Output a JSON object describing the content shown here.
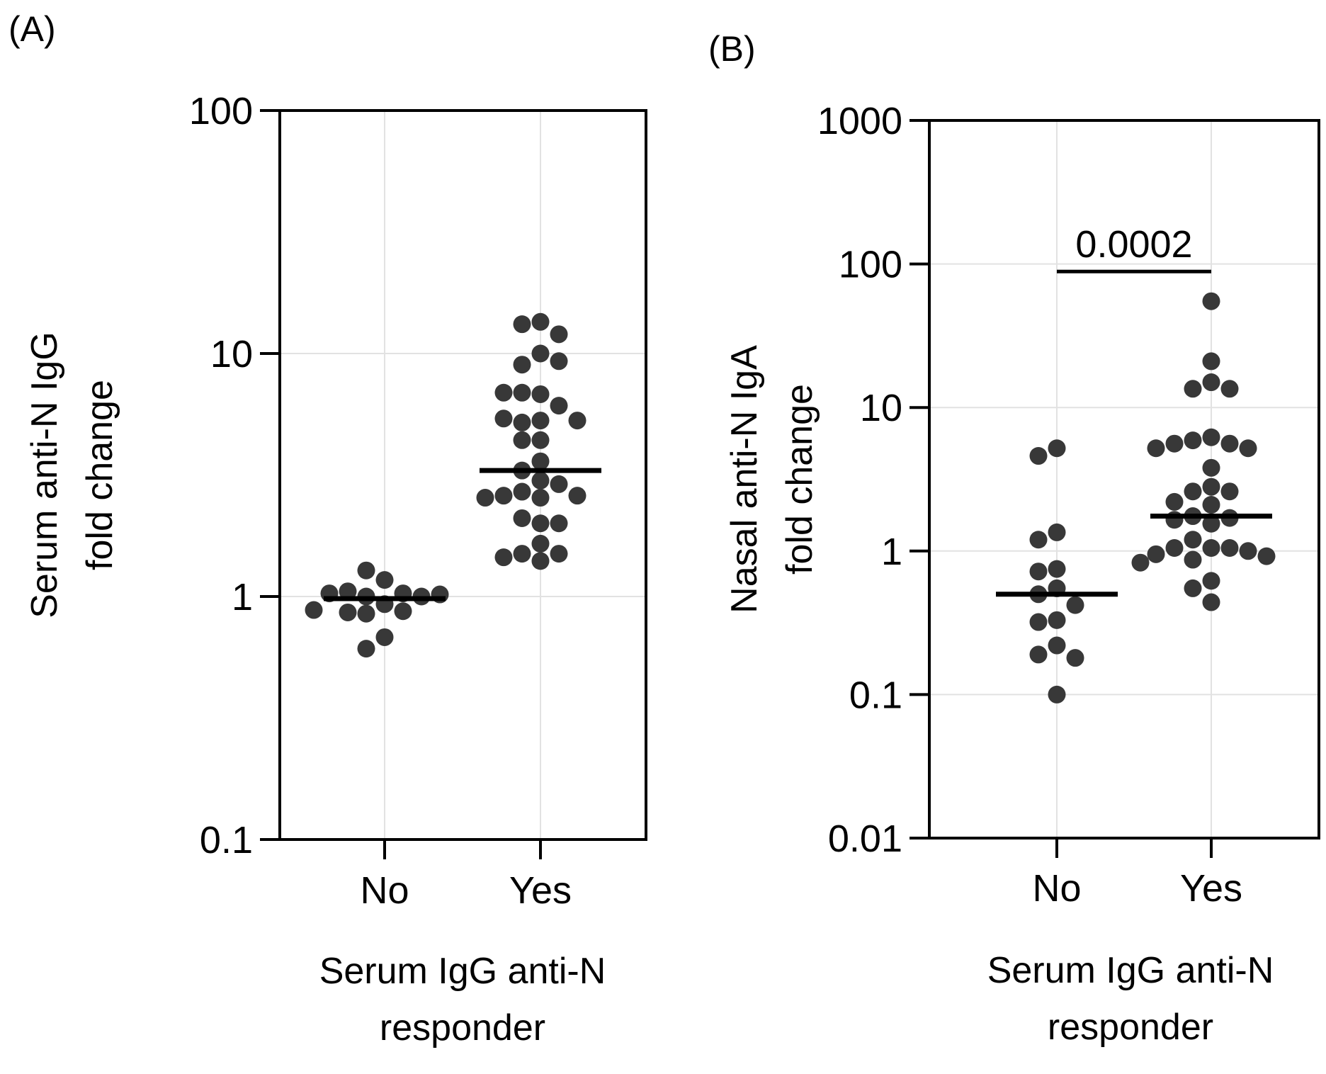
{
  "chart_data": [
    {
      "panel_label": "(A)",
      "type": "scatter",
      "y_scale": "log",
      "ylim": [
        0.1,
        100
      ],
      "yticks": [
        0.1,
        1,
        10,
        100
      ],
      "ytick_labels": [
        "0.1",
        "1",
        "10",
        "100"
      ],
      "categories": [
        "No",
        "Yes"
      ],
      "ylabel_lines": [
        "Serum anti-N IgG",
        "fold change"
      ],
      "xlabel_lines": [
        "Serum IgG anti-N",
        "responder"
      ],
      "grid": true,
      "medians": [
        0.98,
        3.3
      ],
      "series": [
        {
          "name": "No",
          "values": [
            1.17,
            1.28,
            0.93,
            1.0,
            1.03,
            1.05,
            1.0,
            1.03,
            1.02,
            0.87,
            0.85,
            0.86,
            0.88,
            0.68,
            0.61
          ]
        },
        {
          "name": "Yes",
          "values": [
            13.5,
            13.2,
            12.0,
            10.0,
            9.0,
            9.3,
            6.8,
            6.9,
            6.1,
            6.9,
            5.3,
            5.2,
            5.4,
            5.3,
            4.4,
            4.4,
            3.6,
            3.3,
            3.0,
            2.9,
            2.7,
            2.55,
            2.6,
            2.6,
            2.55,
            2.0,
            2.1,
            2.0,
            1.65,
            1.5,
            1.5,
            1.4,
            1.45
          ]
        }
      ]
    },
    {
      "panel_label": "(B)",
      "type": "scatter",
      "y_scale": "log",
      "ylim": [
        0.01,
        1000
      ],
      "yticks": [
        0.01,
        0.1,
        1,
        10,
        100,
        1000
      ],
      "ytick_labels": [
        "0.01",
        "0.1",
        "1",
        "10",
        "100",
        "1000"
      ],
      "categories": [
        "No",
        "Yes"
      ],
      "ylabel_lines": [
        "Nasal anti-N IgA",
        "fold change"
      ],
      "xlabel_lines": [
        "Serum IgG anti-N",
        "responder"
      ],
      "grid": true,
      "medians": [
        0.5,
        1.75
      ],
      "significance": {
        "label": "0.0002",
        "y": 220,
        "between": [
          "No",
          "Yes"
        ]
      },
      "series": [
        {
          "name": "No",
          "values": [
            5.2,
            4.6,
            1.35,
            1.2,
            0.75,
            0.72,
            0.55,
            0.5,
            0.42,
            0.33,
            0.32,
            0.22,
            0.19,
            0.18,
            0.1
          ]
        },
        {
          "name": "Yes",
          "values": [
            55,
            21,
            15,
            13.5,
            13.5,
            6.2,
            5.9,
            5.6,
            5.6,
            5.2,
            5.2,
            3.8,
            2.8,
            2.6,
            2.6,
            2.2,
            2.1,
            1.75,
            1.7,
            1.65,
            1.55,
            1.2,
            1.05,
            1.05,
            1.05,
            1.0,
            0.95,
            0.92,
            0.87,
            0.83,
            0.62,
            0.55,
            0.44
          ]
        }
      ]
    }
  ]
}
